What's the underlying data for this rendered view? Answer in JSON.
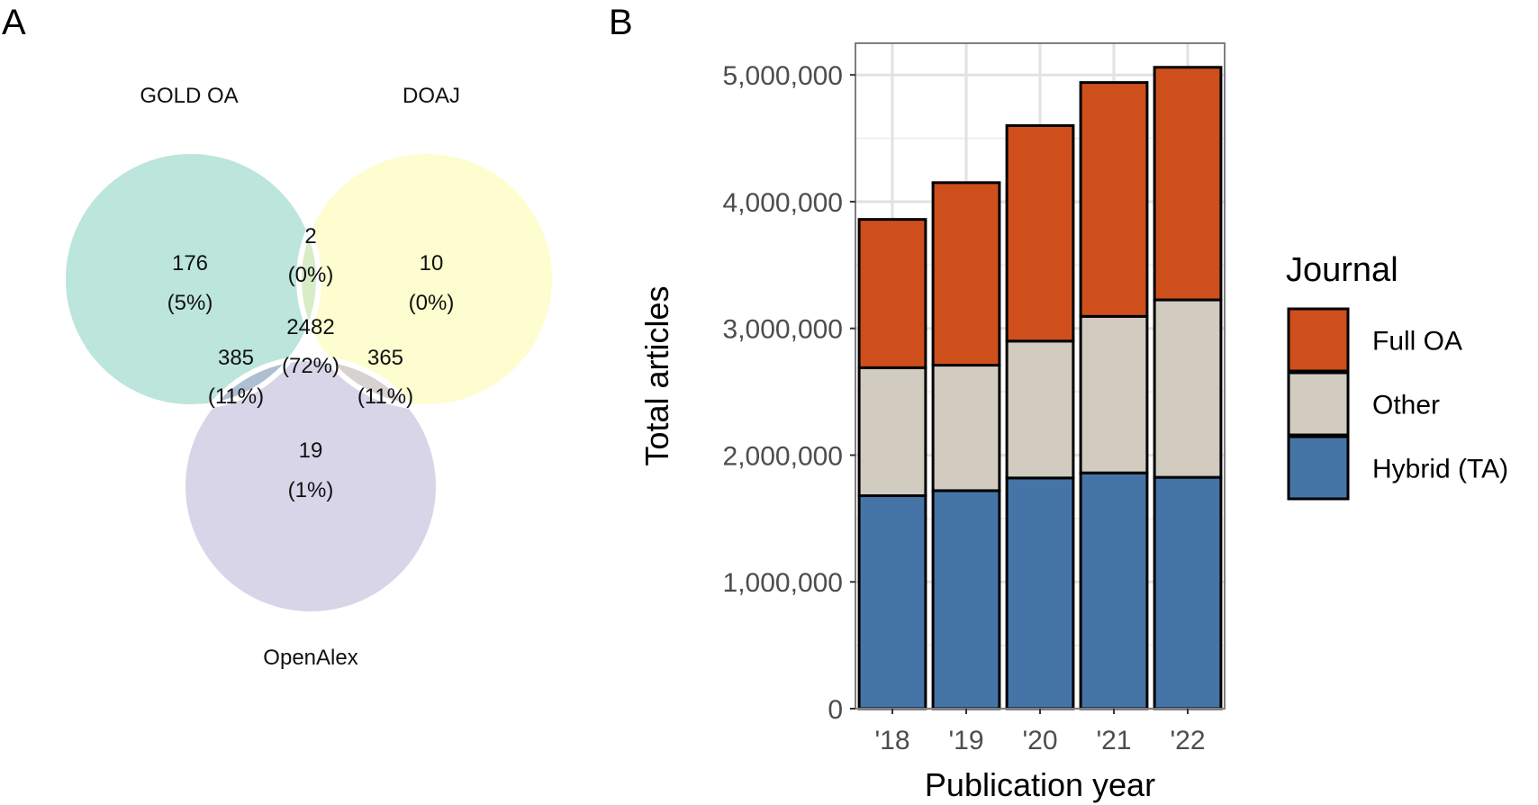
{
  "panels": {
    "a_letter": "A",
    "b_letter": "B"
  },
  "chart_data": [
    {
      "type": "venn",
      "sets": [
        "GOLD OA",
        "DOAJ",
        "OpenAlex"
      ],
      "colors": {
        "GOLD OA": "#bce5dc",
        "DOAJ": "#fdfdd0",
        "OpenAlex": "#d8d5e8"
      },
      "regions": [
        {
          "sets": [
            "GOLD OA"
          ],
          "count": "176",
          "percent": "(5%)"
        },
        {
          "sets": [
            "GOLD OA",
            "DOAJ"
          ],
          "count": "2",
          "percent": "(0%)"
        },
        {
          "sets": [
            "DOAJ"
          ],
          "count": "10",
          "percent": "(0%)"
        },
        {
          "sets": [
            "GOLD OA",
            "DOAJ",
            "OpenAlex"
          ],
          "count": "2482",
          "percent": "(72%)"
        },
        {
          "sets": [
            "GOLD OA",
            "OpenAlex"
          ],
          "count": "385",
          "percent": "(11%)"
        },
        {
          "sets": [
            "DOAJ",
            "OpenAlex"
          ],
          "count": "365",
          "percent": "(11%)"
        },
        {
          "sets": [
            "OpenAlex"
          ],
          "count": "19",
          "percent": "(1%)"
        }
      ]
    },
    {
      "type": "bar",
      "stacked": true,
      "categories": [
        "'18",
        "'19",
        "'20",
        "'21",
        "'22"
      ],
      "series": [
        {
          "name": "Hybrid (TA)",
          "color": "#4575a6",
          "values": [
            1680000,
            1720000,
            1820000,
            1860000,
            1825000
          ]
        },
        {
          "name": "Other",
          "color": "#d1cbc0",
          "values": [
            1010000,
            990000,
            1080000,
            1235000,
            1400000
          ]
        },
        {
          "name": "Full OA",
          "color": "#cf4f1c",
          "values": [
            1170000,
            1440000,
            1700000,
            1845000,
            1835000
          ]
        }
      ],
      "xlabel": "Publication year",
      "ylabel": "Total articles",
      "ylim": [
        0,
        5250000
      ],
      "yticks": [
        0,
        1000000,
        2000000,
        3000000,
        4000000,
        5000000
      ],
      "ytick_labels": [
        "0",
        "1,000,000",
        "2,000,000",
        "3,000,000",
        "4,000,000",
        "5,000,000"
      ],
      "grid": true,
      "legend_title": "Journal",
      "legend_order": [
        "Full OA",
        "Other",
        "Hybrid (TA)"
      ],
      "legend_placement": "right"
    }
  ]
}
